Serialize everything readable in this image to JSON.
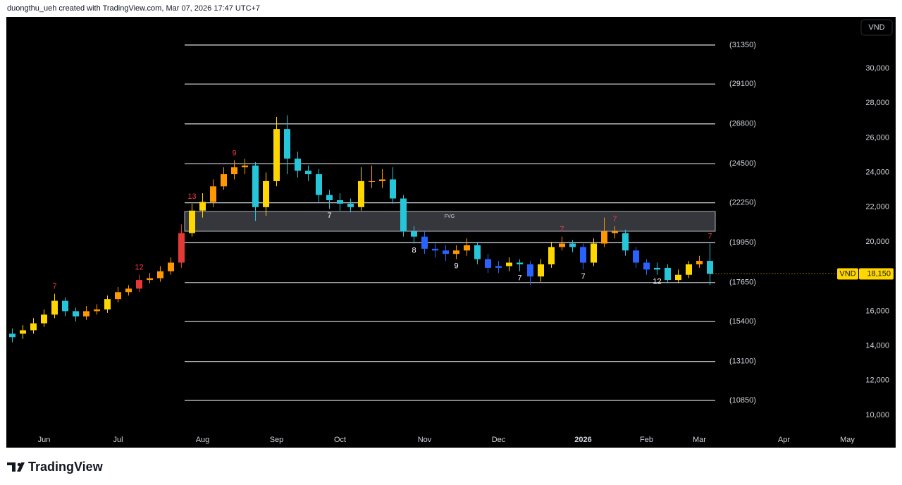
{
  "header": "duongthu_ueh created with TradingView.com, Mar 07, 2026 17:47 UTC+7",
  "brand": "TradingView",
  "chart_data": {
    "type": "candlestick",
    "currency_button": "VND",
    "categories": [
      null,
      null,
      null,
      "Jun",
      null,
      null,
      null,
      null,
      null,
      null,
      "Jul",
      null,
      null,
      null,
      null,
      null,
      null,
      null,
      "Aug",
      null,
      null,
      null,
      null,
      null,
      null,
      "Sep",
      null,
      null,
      null,
      null,
      null,
      "Oct",
      null,
      null,
      null,
      null,
      null,
      null,
      null,
      "Nov",
      null,
      null,
      null,
      null,
      null,
      null,
      "Dec",
      null,
      null,
      null,
      null,
      null,
      null,
      null,
      "2026",
      null,
      null,
      null,
      null,
      null,
      "Feb",
      null,
      null,
      null,
      null,
      "Mar",
      null,
      null,
      null,
      null,
      null,
      null,
      null,
      "Apr",
      null,
      null,
      null,
      null,
      null,
      "May",
      null,
      null,
      null,
      null
    ],
    "open": [
      14500,
      14700,
      14900,
      15300,
      15800,
      16600,
      16000,
      15700,
      16000,
      16100,
      16700,
      17100,
      17300,
      17800,
      17900,
      18300,
      18800,
      20500,
      21800,
      22300,
      23200,
      23900,
      24300,
      24400,
      22000,
      23500,
      26500,
      24800,
      24100,
      23900,
      22700,
      22400,
      22200,
      22000,
      23500,
      23500,
      23600,
      22500,
      20600,
      20300,
      19600,
      19500,
      19300,
      19500,
      19800,
      19000,
      18500,
      18600,
      18800,
      18700,
      18000,
      18700,
      19700,
      19900,
      19700,
      18800,
      19900,
      20600,
      20500,
      19500,
      18800,
      18400,
      18500,
      17800,
      18100,
      18700,
      18900,
      null,
      null,
      null,
      null,
      null,
      null,
      null,
      null,
      null,
      null,
      null,
      null,
      null,
      null,
      null,
      null,
      null
    ],
    "high": [
      15000,
      15200,
      15600,
      16100,
      17000,
      16800,
      16200,
      16300,
      16400,
      16900,
      17400,
      17500,
      18100,
      18200,
      18600,
      19100,
      21000,
      22200,
      22800,
      23600,
      24300,
      24700,
      24800,
      24600,
      24000,
      27200,
      27300,
      25200,
      24400,
      24200,
      23000,
      22800,
      22500,
      24300,
      24400,
      24200,
      24300,
      22700,
      20900,
      20600,
      19900,
      19800,
      19800,
      20200,
      20000,
      19300,
      18900,
      19100,
      19000,
      18900,
      19000,
      20000,
      20300,
      20100,
      19900,
      20200,
      21400,
      20900,
      20700,
      19700,
      19000,
      18800,
      18700,
      18400,
      18900,
      19200,
      19900,
      null,
      null,
      null,
      null,
      null,
      null,
      null,
      null,
      null,
      null,
      null,
      null,
      null,
      null,
      null,
      null,
      null
    ],
    "low": [
      14200,
      14400,
      14700,
      15100,
      15600,
      15700,
      15400,
      15500,
      15800,
      15900,
      16500,
      16900,
      17100,
      17600,
      17700,
      18100,
      18500,
      20300,
      21400,
      22000,
      23000,
      23600,
      23900,
      21200,
      21500,
      23200,
      23900,
      23700,
      23500,
      22300,
      21900,
      21800,
      21700,
      21800,
      23100,
      23100,
      22200,
      20300,
      19900,
      19300,
      19100,
      18900,
      19000,
      19200,
      18700,
      18200,
      18200,
      18300,
      18300,
      17500,
      17700,
      18500,
      19500,
      19400,
      18400,
      18600,
      19700,
      20200,
      19200,
      18500,
      18100,
      18100,
      17600,
      17600,
      17900,
      18500,
      17500,
      null,
      null,
      null,
      null,
      null,
      null,
      null,
      null,
      null,
      null,
      null,
      null,
      null,
      null,
      null,
      null,
      null
    ],
    "close": [
      14700,
      14900,
      15300,
      15800,
      16600,
      16000,
      15700,
      16000,
      16100,
      16700,
      17100,
      17300,
      17800,
      17900,
      18300,
      18800,
      20500,
      21800,
      22300,
      23200,
      23900,
      24300,
      24400,
      22000,
      23500,
      26500,
      24800,
      24100,
      23900,
      22700,
      22400,
      22200,
      22000,
      23500,
      23500,
      23600,
      22500,
      20600,
      20300,
      19600,
      19500,
      19300,
      19500,
      19800,
      19000,
      18500,
      18600,
      18800,
      18700,
      18000,
      18700,
      19700,
      19900,
      19700,
      18800,
      19900,
      20600,
      20500,
      19500,
      18800,
      18400,
      18500,
      17800,
      18100,
      18700,
      18900,
      18150,
      null,
      null,
      null,
      null,
      null,
      null,
      null,
      null,
      null,
      null,
      null,
      null,
      null,
      null,
      null,
      null,
      null
    ],
    "colors": [
      "#26c6da",
      "#ffd600",
      "#ffd600",
      "#ffd600",
      "#ffd600",
      "#26c6da",
      "#26c6da",
      "#ff9800",
      "#ff9800",
      "#ffd600",
      "#ff9800",
      "#ff9800",
      "#e53935",
      "#ff9800",
      "#ff9800",
      "#ff9800",
      "#e53935",
      "#ffd600",
      "#ffd600",
      "#ff9800",
      "#ff9800",
      "#ff9800",
      "#ff9800",
      "#26c6da",
      "#ffd600",
      "#ffd600",
      "#26c6da",
      "#26c6da",
      "#26c6da",
      "#26c6da",
      "#26c6da",
      "#26c6da",
      "#26c6da",
      "#ffd600",
      "#ff9800",
      "#ff9800",
      "#26c6da",
      "#26c6da",
      "#26c6da",
      "#2962ff",
      "#2962ff",
      "#2962ff",
      "#ff9800",
      "#ff9800",
      "#26c6da",
      "#2962ff",
      "#2962ff",
      "#ffd600",
      "#26c6da",
      "#2962ff",
      "#ffd600",
      "#ffd600",
      "#ff9800",
      "#26c6da",
      "#2962ff",
      "#ffd600",
      "#ff9800",
      "#ff9800",
      "#26c6da",
      "#2962ff",
      "#2962ff",
      "#26c6da",
      "#26c6da",
      "#ffd600",
      "#ffd600",
      "#ff9800",
      "#26c6da",
      null,
      null,
      null,
      null,
      null,
      null,
      null,
      null,
      null,
      null,
      null,
      null,
      null,
      null,
      null,
      null,
      null
    ],
    "ylim": [
      8170,
      32970
    ],
    "yticks": [
      {
        "value": 10000,
        "label": "10,000"
      },
      {
        "value": 12000,
        "label": "12,000"
      },
      {
        "value": 14000,
        "label": "14,000"
      },
      {
        "value": 16000,
        "label": "16,000"
      },
      {
        "value": 18000,
        "label": "18,000"
      },
      {
        "value": 20000,
        "label": "20,000"
      },
      {
        "value": 22000,
        "label": "22,000"
      },
      {
        "value": 24000,
        "label": "24,000"
      },
      {
        "value": 26000,
        "label": "26,000"
      },
      {
        "value": 28000,
        "label": "28,000"
      },
      {
        "value": 30000,
        "label": "30,000"
      }
    ],
    "levels": [
      {
        "value": 31350,
        "label": "(31350)"
      },
      {
        "value": 29100,
        "label": "(29100)"
      },
      {
        "value": 26800,
        "label": "(26800)"
      },
      {
        "value": 24500,
        "label": "(24500)"
      },
      {
        "value": 22250,
        "label": "(22250)"
      },
      {
        "value": 19950,
        "label": "(19950)"
      },
      {
        "value": 17650,
        "label": "(17650)"
      },
      {
        "value": 15400,
        "label": "(15400)"
      },
      {
        "value": 13100,
        "label": "(13100)"
      },
      {
        "value": 10850,
        "label": "(10850)"
      }
    ],
    "zone": {
      "low": 20610,
      "high": 21750,
      "label": "FVG"
    },
    "last_price": {
      "value": 18150,
      "label": "18,150",
      "currency": "VND"
    },
    "annotations": [
      {
        "text": "7",
        "at": 4,
        "color": "#f23645"
      },
      {
        "text": "12",
        "at": 12,
        "color": "#f23645"
      },
      {
        "text": "13",
        "at": 17,
        "color": "#f23645"
      },
      {
        "text": "9",
        "at": 21,
        "color": "#f23645"
      },
      {
        "text": "7",
        "at": 30,
        "color": "#ffffff"
      },
      {
        "text": "8",
        "at": 38,
        "color": "#ffffff"
      },
      {
        "text": "9",
        "at": 42,
        "color": "#ffffff"
      },
      {
        "text": "7",
        "at": 48,
        "color": "#ffffff"
      },
      {
        "text": "7",
        "at": 52,
        "color": "#f23645"
      },
      {
        "text": "7",
        "at": 54,
        "color": "#ffffff"
      },
      {
        "text": "7",
        "at": 57,
        "color": "#f23645"
      },
      {
        "text": "12",
        "at": 61,
        "color": "#ffffff"
      },
      {
        "text": "7",
        "at": 66,
        "color": "#f23645"
      }
    ]
  }
}
